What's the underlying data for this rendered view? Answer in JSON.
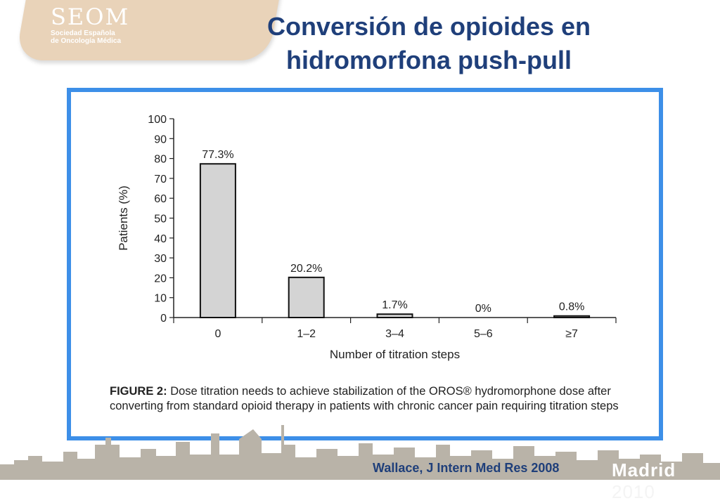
{
  "logo": {
    "name": "SEOM",
    "line1": "Sociedad Española",
    "line2": "de Oncología Médica"
  },
  "slide": {
    "title_line1": "Conversión de opioides en",
    "title_line2": "hidromorfona push-pull",
    "citation": "Wallace, J Intern Med Res 2008",
    "footer_city": "Madrid",
    "footer_year": "2010"
  },
  "colors": {
    "title": "#1f3f7a",
    "frame": "#3d8fe8",
    "bar_fill": "#d4d4d4",
    "logo_bg": "#e9d3b9"
  },
  "caption": {
    "label": "FIGURE 2:",
    "text": "Dose titration needs to achieve stabilization of the OROS® hydromorphone dose after converting from standard opioid therapy in patients with chronic cancer pain requiring titration steps"
  },
  "chart_data": {
    "type": "bar",
    "categories": [
      "0",
      "1–2",
      "3–4",
      "5–6",
      "≥7"
    ],
    "values": [
      77.3,
      20.2,
      1.7,
      0,
      0.8
    ],
    "data_labels": [
      "77.3%",
      "20.2%",
      "1.7%",
      "0%",
      "0.8%"
    ],
    "xlabel": "Number of titration steps",
    "ylabel": "Patients (%)",
    "ylim": [
      0,
      100
    ],
    "yticks": [
      "0",
      "10",
      "20",
      "30",
      "40",
      "50",
      "60",
      "70",
      "80",
      "90",
      "100"
    ],
    "grid": false
  }
}
